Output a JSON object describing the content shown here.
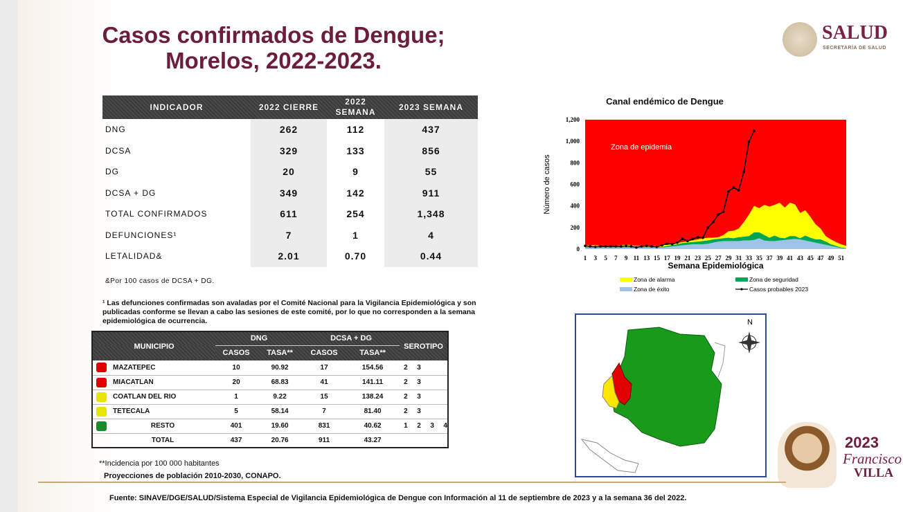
{
  "title": {
    "line1": "Casos confirmados de Dengue;",
    "line2": "Morelos, 2022-2023."
  },
  "logo": {
    "name": "SALUD",
    "subtitle": "SECRETARÍA DE SALUD"
  },
  "indicators": {
    "headers": [
      "INDICADOR",
      "2022 CIERRE",
      "2022 SEMANA",
      "2023 SEMANA"
    ],
    "rows": [
      [
        "DNG",
        "262",
        "112",
        "437"
      ],
      [
        "DCSA",
        "329",
        "133",
        "856"
      ],
      [
        "DG",
        "20",
        "9",
        "55"
      ],
      [
        "DCSA + DG",
        "349",
        "142",
        "911"
      ],
      [
        "TOTAL CONFIRMADOS",
        "611",
        "254",
        "1,348"
      ],
      [
        "DEFUNCIONES¹",
        "7",
        "1",
        "4"
      ],
      [
        "LETALIDAD&",
        "2.01",
        "0.70",
        "0.44"
      ]
    ]
  },
  "notes": {
    "letalidad": "&Por 100 casos de DCSA + DG.",
    "defunciones": "¹ Las defunciones confirmadas son avaladas por el Comité Nacional para la Vigilancia Epidemiológica y son publicadas conforme se llevan a cabo las sesiones de este comité, por lo que no corresponden a la semana epidemiológica de ocurrencia.",
    "incidencia": "**Incidencia por 100 000 habitantes",
    "proyecciones": "Proyecciones de población 2010-2030,  CONAPO."
  },
  "municipios": {
    "headers": {
      "municipio": "MUNICIPIO",
      "dng": "DNG",
      "dcsa": "DCSA + DG",
      "casos": "CASOS",
      "tasa": "TASA**",
      "serotipo": "SEROTIPO"
    },
    "rows": [
      {
        "name": "MAZATEPEC",
        "color": "#e00000",
        "dng_casos": "10",
        "dng_tasa": "90.92",
        "dcsa_casos": "17",
        "dcsa_tasa": "154.56",
        "serotipo": "2  3"
      },
      {
        "name": "MIACATLAN",
        "color": "#e00000",
        "dng_casos": "20",
        "dng_tasa": "68.83",
        "dcsa_casos": "41",
        "dcsa_tasa": "141.11",
        "serotipo": "2  3"
      },
      {
        "name": "COATLAN DEL RIO",
        "color": "#e6e600",
        "dng_casos": "1",
        "dng_tasa": "9.22",
        "dcsa_casos": "15",
        "dcsa_tasa": "138.24",
        "serotipo": "2  3"
      },
      {
        "name": "TETECALA",
        "color": "#e6e600",
        "dng_casos": "5",
        "dng_tasa": "58.14",
        "dcsa_casos": "7",
        "dcsa_tasa": "81.40",
        "serotipo": "2  3"
      },
      {
        "name": "RESTO",
        "color": "#1a8a2a",
        "dng_casos": "401",
        "dng_tasa": "19.60",
        "dcsa_casos": "831",
        "dcsa_tasa": "40.62",
        "serotipo": "1  2  3  4"
      },
      {
        "name": "TOTAL",
        "color": "",
        "dng_casos": "437",
        "dng_tasa": "20.76",
        "dcsa_casos": "911",
        "dcsa_tasa": "43.27",
        "serotipo": ""
      }
    ]
  },
  "map": {
    "north_label": "N"
  },
  "footer": {
    "fuente": "Fuente: SINAVE/DGE/SALUD/Sistema Especial de Vigilancia Epidemiológica de Dengue con Información al 11 de septiembre de 2023 y a la semana 36 del 2022."
  },
  "villa_logo": {
    "year": "2023",
    "name1": "Francisco",
    "name2": "VILLA"
  },
  "chart_data": {
    "type": "area",
    "title": "Canal endémico de Dengue",
    "xlabel": "Semana Epidemiológica",
    "ylabel": "Número de casos",
    "ylim": [
      0,
      1200
    ],
    "yticks": [
      "0",
      "200",
      "400",
      "600",
      "800",
      "1,000",
      "1,200"
    ],
    "xlim": [
      1,
      52
    ],
    "xticks": [
      1,
      3,
      5,
      7,
      9,
      11,
      13,
      15,
      17,
      19,
      21,
      23,
      25,
      27,
      29,
      31,
      33,
      35,
      37,
      39,
      41,
      43,
      45,
      47,
      49,
      51
    ],
    "annotation": "Zona de epidemia",
    "colors": {
      "epidemia": "#ff0000",
      "alarma": "#ffff00",
      "seguridad": "#00a651",
      "exito": "#9dc3e6",
      "line": "#000000"
    },
    "legend": [
      "Zona de alarma",
      "Zona de seguridad",
      "Zona de éxito",
      "Casos probables 2023"
    ],
    "legend_position": "bottom",
    "zones_upper": {
      "exito": [
        15,
        15,
        15,
        15,
        15,
        15,
        15,
        15,
        15,
        15,
        15,
        15,
        15,
        15,
        15,
        15,
        20,
        25,
        30,
        35,
        40,
        45,
        45,
        45,
        50,
        60,
        70,
        75,
        75,
        75,
        75,
        80,
        80,
        85,
        100,
        80,
        75,
        75,
        80,
        85,
        90,
        95,
        90,
        80,
        70,
        60,
        50,
        40,
        30,
        20,
        10,
        5
      ],
      "seguridad": [
        20,
        20,
        20,
        20,
        20,
        20,
        20,
        20,
        20,
        20,
        20,
        20,
        20,
        20,
        20,
        20,
        30,
        35,
        45,
        55,
        60,
        65,
        70,
        75,
        80,
        90,
        95,
        100,
        105,
        100,
        110,
        115,
        120,
        155,
        155,
        130,
        105,
        125,
        105,
        100,
        120,
        120,
        100,
        125,
        105,
        90,
        90,
        70,
        45,
        30,
        15,
        8
      ],
      "alarma": [
        35,
        35,
        35,
        30,
        30,
        30,
        30,
        35,
        40,
        35,
        30,
        30,
        35,
        30,
        30,
        35,
        40,
        45,
        55,
        65,
        70,
        80,
        90,
        100,
        105,
        105,
        110,
        130,
        165,
        170,
        190,
        250,
        320,
        400,
        380,
        410,
        395,
        410,
        430,
        385,
        430,
        415,
        335,
        360,
        300,
        230,
        190,
        120,
        90,
        65,
        45,
        30
      ]
    },
    "series": [
      {
        "name": "Casos probables 2023",
        "x": [
          1,
          2,
          3,
          4,
          5,
          6,
          7,
          8,
          9,
          10,
          11,
          12,
          13,
          14,
          15,
          16,
          17,
          18,
          19,
          20,
          21,
          22,
          23,
          24,
          25,
          26,
          27,
          28,
          29,
          30,
          31,
          32,
          33,
          34
        ],
        "values": [
          30,
          25,
          20,
          25,
          25,
          25,
          25,
          25,
          30,
          25,
          15,
          25,
          30,
          25,
          20,
          35,
          50,
          45,
          60,
          95,
          75,
          95,
          110,
          105,
          200,
          250,
          320,
          345,
          535,
          570,
          545,
          715,
          995,
          1095
        ]
      }
    ]
  }
}
